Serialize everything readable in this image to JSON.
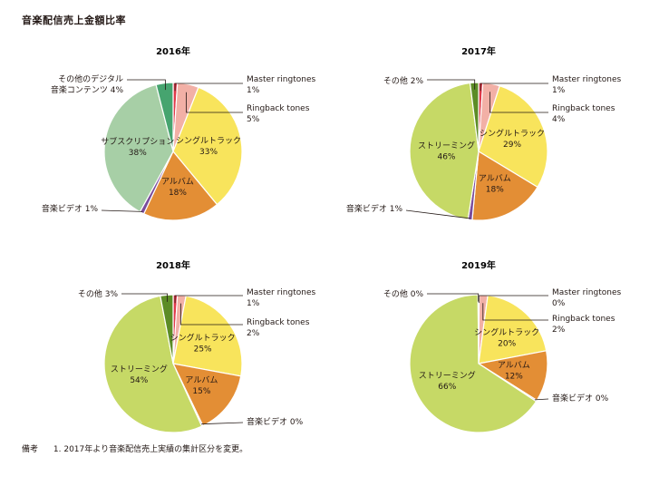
{
  "title": "音楽配信売上金額比率",
  "footnote": {
    "head": "備考",
    "text": "1. 2017年より音楽配信売上実績の集計区分を変更。"
  },
  "colors": {
    "master_ringtones": "#e03a4a",
    "ringback_tones": "#f2b0a6",
    "single_track": "#f8e45c",
    "album": "#e38e35",
    "music_video": "#7a4c9c",
    "subscription": "#a7cfa6",
    "other_digital": "#46a46f",
    "streaming": "#c6d966",
    "other": "#5c8c26",
    "stroke": "#ffffff",
    "leader": "#231815"
  },
  "chart_data": [
    {
      "type": "pie",
      "title": "2016年",
      "slices": [
        {
          "key": "master_ringtones",
          "label": "Master ringtones",
          "pct": "1%",
          "value": 1
        },
        {
          "key": "ringback_tones",
          "label": "Ringback tones",
          "pct": "5%",
          "value": 5
        },
        {
          "key": "single_track",
          "label": "シングルトラック",
          "pct": "33%",
          "value": 33
        },
        {
          "key": "album",
          "label": "アルバム",
          "pct": "18%",
          "value": 18
        },
        {
          "key": "music_video",
          "label": "音楽ビデオ",
          "pct": "1%",
          "value": 1
        },
        {
          "key": "subscription",
          "label": "サブスクリプション",
          "pct": "38%",
          "value": 38
        },
        {
          "key": "other_digital",
          "label": "その他のデジタル音楽コンテンツ",
          "label_lines": [
            "その他のデジタル",
            "音楽コンテンツ"
          ],
          "pct": "4%",
          "value": 4
        }
      ]
    },
    {
      "type": "pie",
      "title": "2017年",
      "slices": [
        {
          "key": "master_ringtones",
          "label": "Master ringtones",
          "pct": "1%",
          "value": 1
        },
        {
          "key": "ringback_tones",
          "label": "Ringback tones",
          "pct": "4%",
          "value": 4
        },
        {
          "key": "single_track",
          "label": "シングルトラック",
          "pct": "29%",
          "value": 29
        },
        {
          "key": "album",
          "label": "アルバム",
          "pct": "18%",
          "value": 18
        },
        {
          "key": "music_video",
          "label": "音楽ビデオ",
          "pct": "1%",
          "value": 1
        },
        {
          "key": "streaming",
          "label": "ストリーミング",
          "pct": "46%",
          "value": 46
        },
        {
          "key": "other",
          "label": "その他",
          "pct": "2%",
          "value": 2
        }
      ]
    },
    {
      "type": "pie",
      "title": "2018年",
      "slices": [
        {
          "key": "master_ringtones",
          "label": "Master ringtones",
          "pct": "1%",
          "value": 1
        },
        {
          "key": "ringback_tones",
          "label": "Ringback tones",
          "pct": "2%",
          "value": 2
        },
        {
          "key": "single_track",
          "label": "シングルトラック",
          "pct": "25%",
          "value": 25
        },
        {
          "key": "album",
          "label": "アルバム",
          "pct": "15%",
          "value": 15
        },
        {
          "key": "music_video",
          "label": "音楽ビデオ",
          "pct": "0%",
          "value": 0.3
        },
        {
          "key": "streaming",
          "label": "ストリーミング",
          "pct": "54%",
          "value": 54
        },
        {
          "key": "other",
          "label": "その他",
          "pct": "3%",
          "value": 3
        }
      ]
    },
    {
      "type": "pie",
      "title": "2019年",
      "slices": [
        {
          "key": "master_ringtones",
          "label": "Master ringtones",
          "pct": "0%",
          "value": 0.15
        },
        {
          "key": "ringback_tones",
          "label": "Ringback tones",
          "pct": "2%",
          "value": 2
        },
        {
          "key": "single_track",
          "label": "シングルトラック",
          "pct": "20%",
          "value": 20
        },
        {
          "key": "album",
          "label": "アルバム",
          "pct": "12%",
          "value": 12
        },
        {
          "key": "music_video",
          "label": "音楽ビデオ",
          "pct": "0%",
          "value": 0.3
        },
        {
          "key": "streaming",
          "label": "ストリーミング",
          "pct": "66%",
          "value": 66
        },
        {
          "key": "other",
          "label": "その他",
          "pct": "0%",
          "value": 0.15
        }
      ]
    }
  ]
}
